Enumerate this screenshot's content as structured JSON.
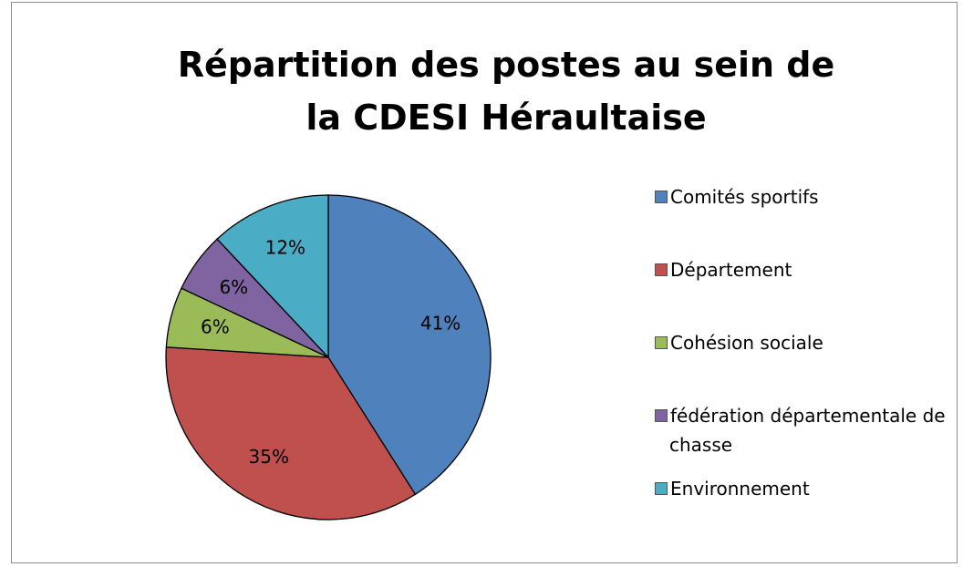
{
  "chart_data": {
    "type": "pie",
    "title": "Répartition des postes au sein de la CDESI Héraultaise",
    "categories": [
      "Comités sportifs",
      "Département",
      "Cohésion sociale",
      "fédération départementale de chasse",
      "Environnement"
    ],
    "values": [
      41,
      35,
      6,
      6,
      12
    ],
    "value_labels": [
      "41%",
      "35%",
      "6%",
      "6%",
      "12%"
    ],
    "colors": [
      "#4f81bd",
      "#c0504d",
      "#9bbb59",
      "#8064a2",
      "#4bacc6"
    ],
    "legend": "right"
  }
}
